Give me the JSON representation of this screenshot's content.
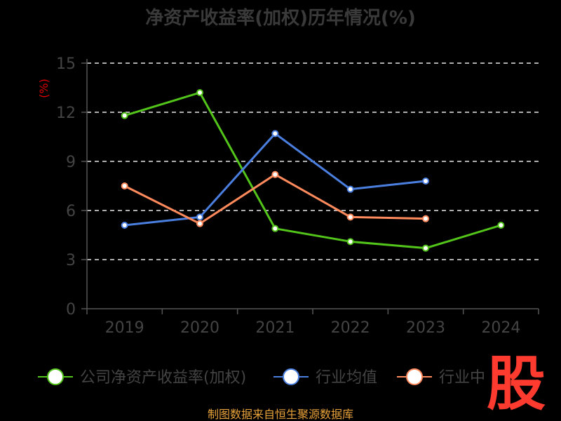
{
  "chart_data": {
    "type": "line",
    "title": "净资产收益率(加权)历年情况(%)",
    "ylabel": "(%)",
    "xlabel": "",
    "categories": [
      "2019",
      "2020",
      "2021",
      "2022",
      "2023",
      "2024"
    ],
    "ylim": [
      0,
      15
    ],
    "yticks": [
      0,
      3,
      6,
      9,
      12,
      15
    ],
    "grid": true,
    "legend_position": "bottom",
    "series": [
      {
        "name": "公司净资产收益率(加权)",
        "color": "#52c41a",
        "values": [
          11.8,
          13.2,
          4.9,
          4.1,
          3.7,
          5.1
        ]
      },
      {
        "name": "行业均值",
        "color": "#4a7fe0",
        "values": [
          5.1,
          5.6,
          10.7,
          7.3,
          7.8,
          null
        ]
      },
      {
        "name": "行业中位数",
        "color": "#ff8a5c",
        "values": [
          7.5,
          5.2,
          8.2,
          5.6,
          5.5,
          null
        ]
      }
    ]
  },
  "legend": {
    "items": [
      "公司净资产收益率(加权)",
      "行业均值",
      "行业中"
    ]
  },
  "source": "制图数据来自恒生聚源数据库",
  "logo_text": "股"
}
